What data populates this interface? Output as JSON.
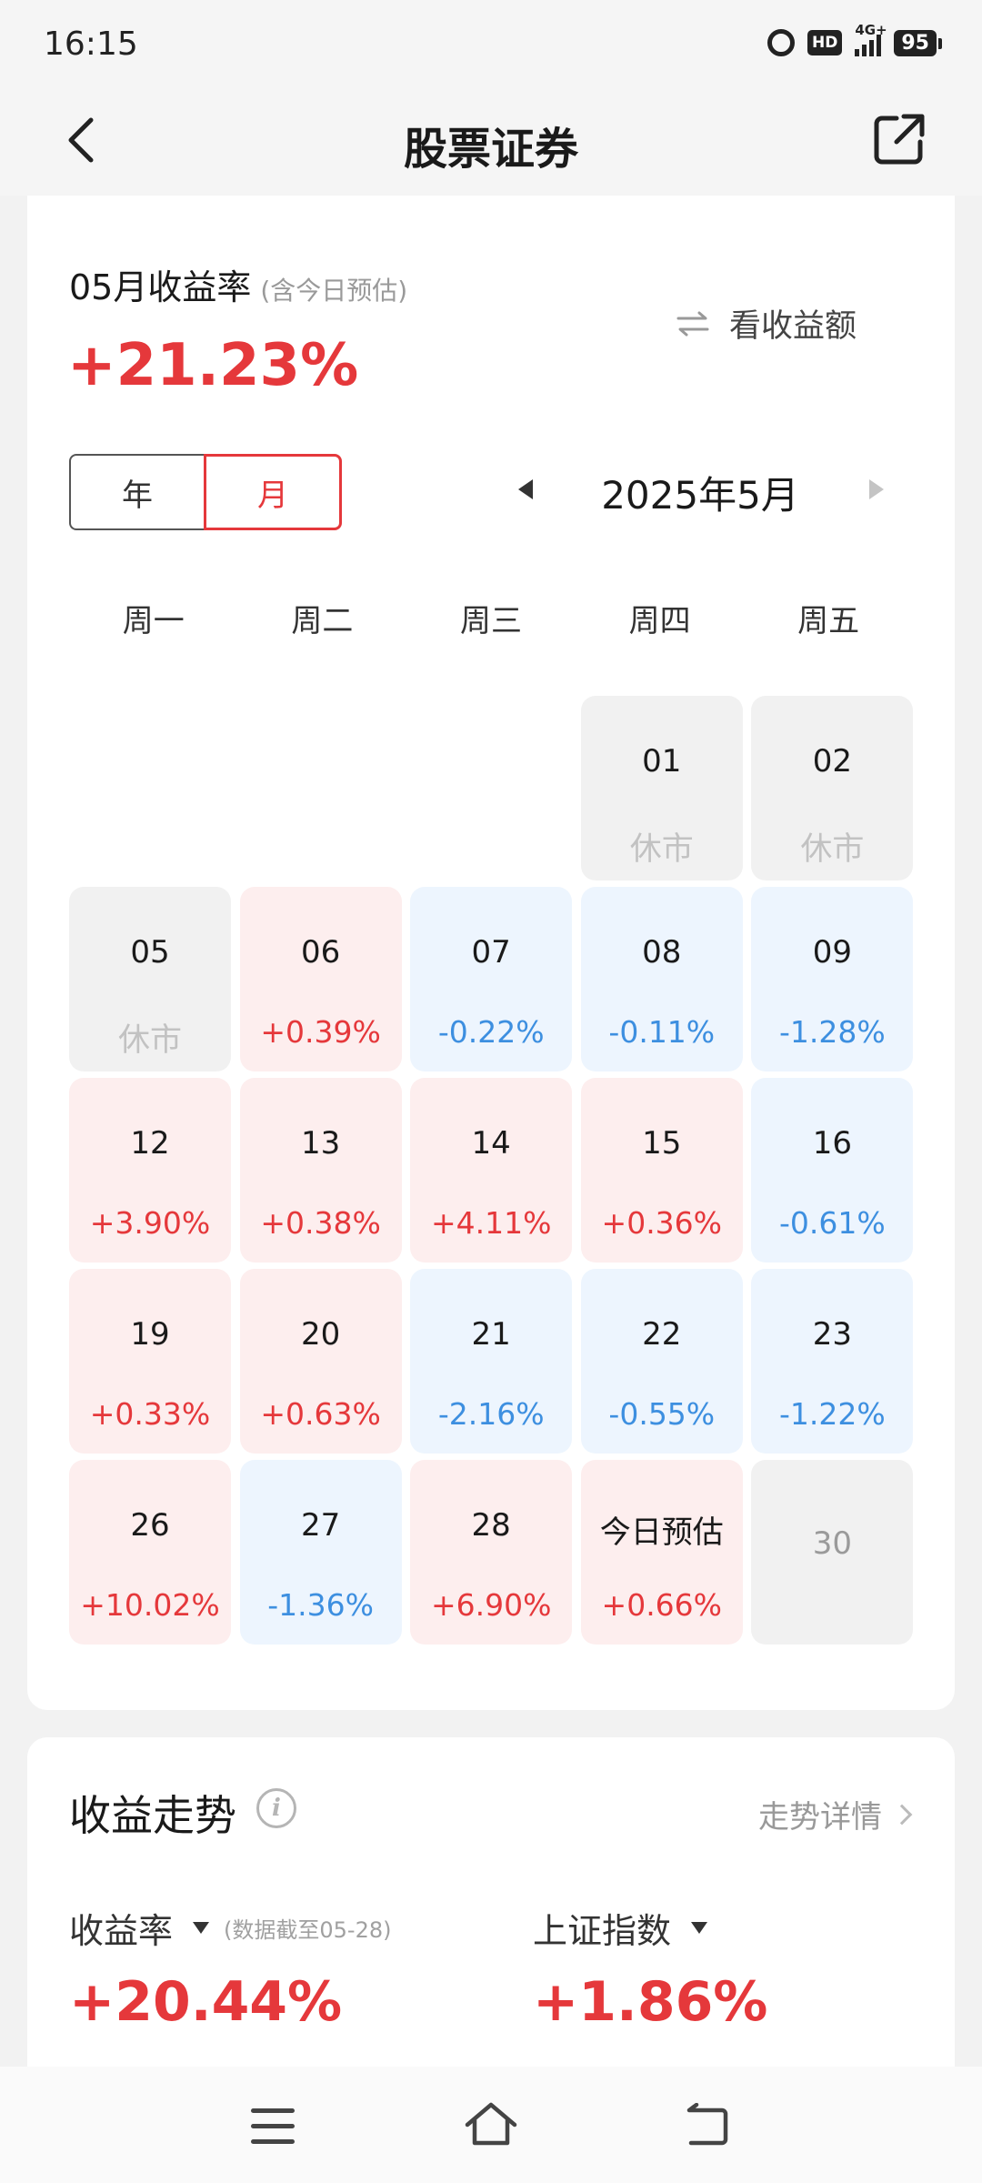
{
  "status_bar": {
    "time": "16:15",
    "hd_label": "HD",
    "network_label": "4G+",
    "battery": "95"
  },
  "nav": {
    "title": "股票证券",
    "back_icon": "chevron-left-icon",
    "share_icon": "share-external-icon"
  },
  "monthly": {
    "title": "05月收益率",
    "note": "(含今日预估)",
    "value": "+21.23%",
    "switch_label": "看收益额",
    "segments": [
      "年",
      "月"
    ],
    "active_segment": "月",
    "month_label": "2025年5月"
  },
  "calendar": {
    "weekdays": [
      "周一",
      "周二",
      "周三",
      "周四",
      "周五"
    ],
    "rows": [
      [
        null,
        null,
        null,
        {
          "day": "01",
          "pct": "休市",
          "state": "closed"
        },
        {
          "day": "02",
          "pct": "休市",
          "state": "closed"
        }
      ],
      [
        {
          "day": "05",
          "pct": "休市",
          "state": "closed"
        },
        {
          "day": "06",
          "pct": "+0.39%",
          "state": "up"
        },
        {
          "day": "07",
          "pct": "-0.22%",
          "state": "down"
        },
        {
          "day": "08",
          "pct": "-0.11%",
          "state": "down"
        },
        {
          "day": "09",
          "pct": "-1.28%",
          "state": "down"
        }
      ],
      [
        {
          "day": "12",
          "pct": "+3.90%",
          "state": "up"
        },
        {
          "day": "13",
          "pct": "+0.38%",
          "state": "up"
        },
        {
          "day": "14",
          "pct": "+4.11%",
          "state": "up"
        },
        {
          "day": "15",
          "pct": "+0.36%",
          "state": "up"
        },
        {
          "day": "16",
          "pct": "-0.61%",
          "state": "down"
        }
      ],
      [
        {
          "day": "19",
          "pct": "+0.33%",
          "state": "up"
        },
        {
          "day": "20",
          "pct": "+0.63%",
          "state": "up"
        },
        {
          "day": "21",
          "pct": "-2.16%",
          "state": "down"
        },
        {
          "day": "22",
          "pct": "-0.55%",
          "state": "down"
        },
        {
          "day": "23",
          "pct": "-1.22%",
          "state": "down"
        }
      ],
      [
        {
          "day": "26",
          "pct": "+10.02%",
          "state": "up"
        },
        {
          "day": "27",
          "pct": "-1.36%",
          "state": "down"
        },
        {
          "day": "28",
          "pct": "+6.90%",
          "state": "up"
        },
        {
          "day": "今日预估",
          "pct": "+0.66%",
          "state": "up"
        },
        {
          "day": "30",
          "pct": "",
          "state": "future"
        }
      ]
    ]
  },
  "trend": {
    "title": "收益走势",
    "detail_label": "走势详情",
    "return_label": "收益率",
    "return_note": "(数据截至05-28)",
    "return_value": "+20.44%",
    "index_label": "上证指数",
    "index_value": "+1.86%"
  },
  "colors": {
    "up": "#e5383b",
    "down": "#3d8fe0",
    "up_bg": "#fdeeee",
    "down_bg": "#edf5fe",
    "closed_bg": "#f1f1f1"
  }
}
